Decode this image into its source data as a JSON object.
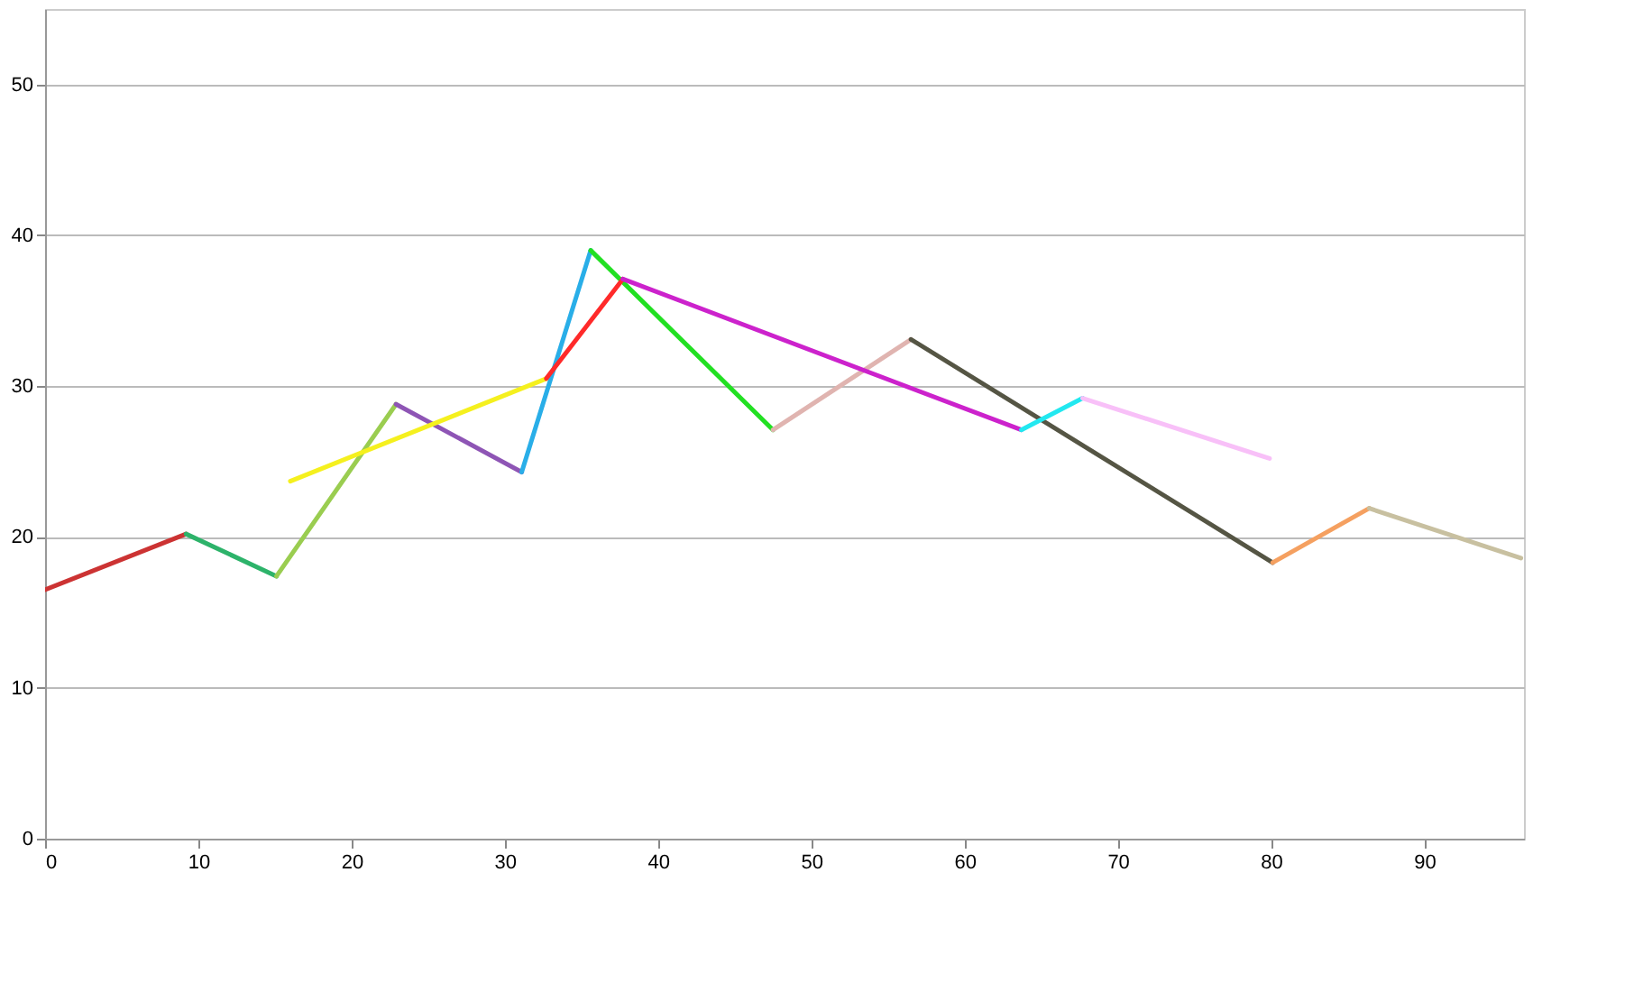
{
  "chart_data": {
    "type": "line",
    "xlim": [
      0,
      96.5
    ],
    "ylim": [
      0,
      55
    ],
    "xticks": [
      0,
      10,
      20,
      30,
      40,
      50,
      60,
      70,
      80,
      90
    ],
    "yticks": [
      0,
      10,
      20,
      30,
      40,
      50
    ],
    "grid": "y",
    "legend": false,
    "line_style": "solid",
    "marker": "none",
    "series": [
      {
        "color": "#cc3333",
        "x": [
          0,
          9.2
        ],
        "values": [
          16.5,
          20.2
        ]
      },
      {
        "color": "#2db36a",
        "x": [
          9.2,
          15.1
        ],
        "values": [
          20.2,
          17.4
        ]
      },
      {
        "color": "#9acd50",
        "x": [
          15.1,
          22.9
        ],
        "values": [
          17.4,
          28.8
        ]
      },
      {
        "color": "#8e55b5",
        "x": [
          22.9,
          31.1
        ],
        "values": [
          28.8,
          24.3
        ]
      },
      {
        "color": "#29aee8",
        "x": [
          31.1,
          35.6
        ],
        "values": [
          24.3,
          39.0
        ]
      },
      {
        "color": "#22e022",
        "x": [
          35.6,
          47.5
        ],
        "values": [
          39.0,
          27.1
        ]
      },
      {
        "color": "#e0b4b0",
        "x": [
          47.5,
          56.5
        ],
        "values": [
          27.1,
          33.1
        ]
      },
      {
        "color": "#555544",
        "x": [
          56.5,
          80.1
        ],
        "values": [
          33.1,
          18.3
        ]
      },
      {
        "color": "#f5a060",
        "x": [
          80.1,
          86.4
        ],
        "values": [
          18.3,
          21.9
        ]
      },
      {
        "color": "#c8c0a0",
        "x": [
          86.4,
          96.3
        ],
        "values": [
          21.9,
          18.6
        ]
      },
      {
        "color": "#f5f01e",
        "x": [
          16.0,
          32.7
        ],
        "values": [
          23.7,
          30.5
        ]
      },
      {
        "color": "#ff2a2a",
        "x": [
          32.7,
          37.7
        ],
        "values": [
          30.5,
          37.1
        ]
      },
      {
        "color": "#cc22cc",
        "x": [
          37.7,
          63.7
        ],
        "values": [
          37.1,
          27.1
        ]
      },
      {
        "color": "#22e8f0",
        "x": [
          63.7,
          67.7
        ],
        "values": [
          27.1,
          29.2
        ]
      },
      {
        "color": "#f8c0f8",
        "x": [
          67.7,
          79.9
        ],
        "values": [
          29.2,
          25.2
        ]
      }
    ]
  }
}
